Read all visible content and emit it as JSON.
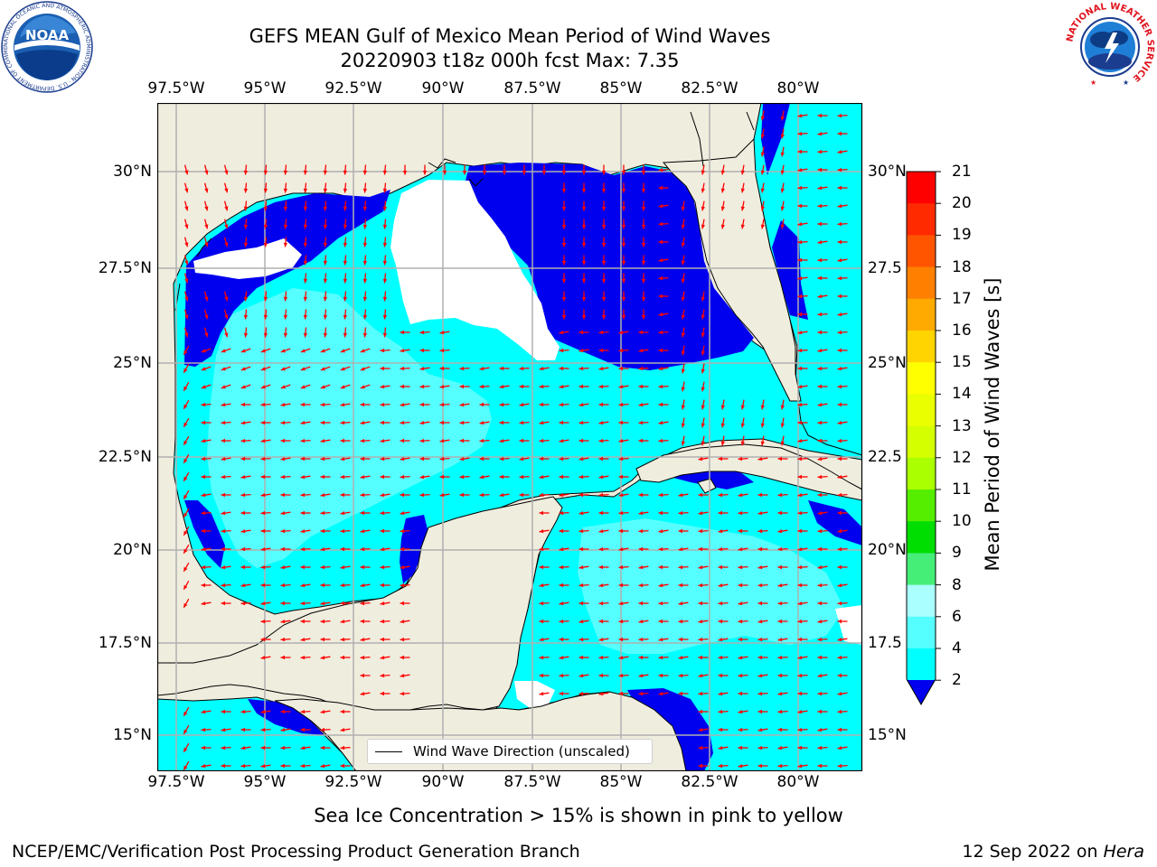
{
  "title": {
    "line1": "GEFS MEAN Gulf of Mexico Mean Period of Wind Waves",
    "line2": "20220903 t18z 000h fcst   Max: 7.35"
  },
  "map": {
    "lon_labels": [
      "97.5°W",
      "95°W",
      "92.5°W",
      "90°W",
      "87.5°W",
      "85°W",
      "82.5°W",
      "80°W"
    ],
    "lat_labels": [
      "30°N",
      "27.5°N",
      "25°N",
      "22.5°N",
      "20°N",
      "17.5°N",
      "15°N"
    ],
    "lat_labels_right": [
      "30°N",
      "27.5",
      "25°N",
      "22.5",
      "20°N",
      "17.5",
      "15°N"
    ],
    "legend_label": "Wind Wave Direction (unscaled)",
    "land_color": "#efedde",
    "arrow_color": "#ff0000"
  },
  "colorbar": {
    "label": "Mean Period of Wind Waves [s]",
    "ticks": [
      "21",
      "20",
      "19",
      "18",
      "17",
      "16",
      "15",
      "14",
      "13",
      "12",
      "11",
      "10",
      "9",
      "8",
      "6",
      "4",
      "2"
    ],
    "colors": [
      "#ff0000",
      "#ff2a00",
      "#ff5500",
      "#ff8000",
      "#ffaa00",
      "#ffd400",
      "#ffff00",
      "#eaff00",
      "#d4ff00",
      "#aaff00",
      "#55ee00",
      "#00dd00",
      "#44ee77",
      "#aaffff",
      "#55ffff",
      "#00ffff",
      "#0080ff",
      "#0000ee"
    ]
  },
  "notes": {
    "ice": "Sea Ice Concentration > 15% is shown in pink to yellow"
  },
  "footer": {
    "left": "NCEP/EMC/Verification Post Processing Product Generation Branch",
    "right_date": "12 Sep 2022 on ",
    "right_host": "Hera"
  },
  "logos": {
    "noaa_text": "NOAA",
    "noaa_ring": "NATIONAL OCEANIC AND ATMOSPHERIC ADMINISTRATION · U.S. DEPARTMENT OF COMMERCE",
    "nws_ring": "NATIONAL WEATHER SERVICE"
  }
}
